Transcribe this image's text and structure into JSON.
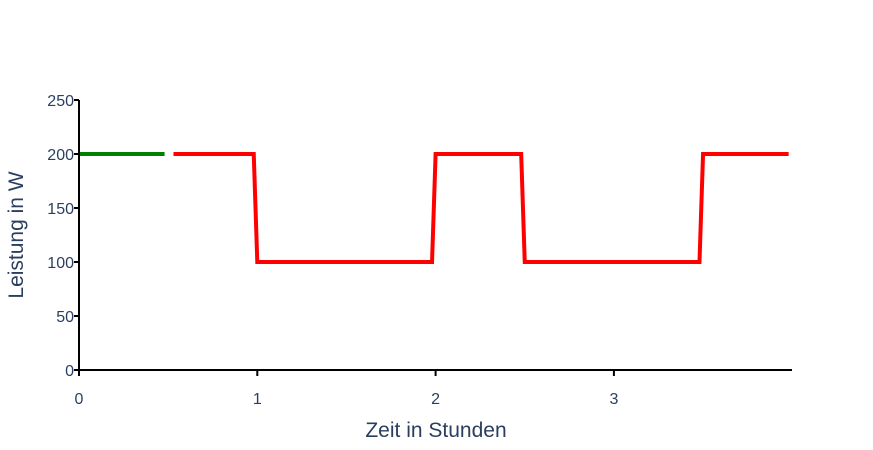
{
  "chart_data": {
    "type": "line",
    "title": "",
    "xlabel": "Zeit in Stunden",
    "ylabel": "Leistung in W",
    "xlim": [
      0,
      4
    ],
    "ylim": [
      0,
      250
    ],
    "x_ticks": [
      0,
      1,
      2,
      3
    ],
    "y_ticks": [
      0,
      50,
      100,
      150,
      200,
      250
    ],
    "grid": false,
    "legend": "none",
    "series": [
      {
        "color": "#008000",
        "x": [
          0,
          0.48
        ],
        "y": [
          200,
          200
        ]
      },
      {
        "color": "#ff0000",
        "x": [
          0.53,
          0.98,
          1.0,
          1.98,
          2.0,
          2.48,
          2.5,
          3.48,
          3.5,
          3.98
        ],
        "y": [
          200,
          200,
          100,
          100,
          200,
          200,
          100,
          100,
          200,
          200
        ]
      }
    ]
  }
}
